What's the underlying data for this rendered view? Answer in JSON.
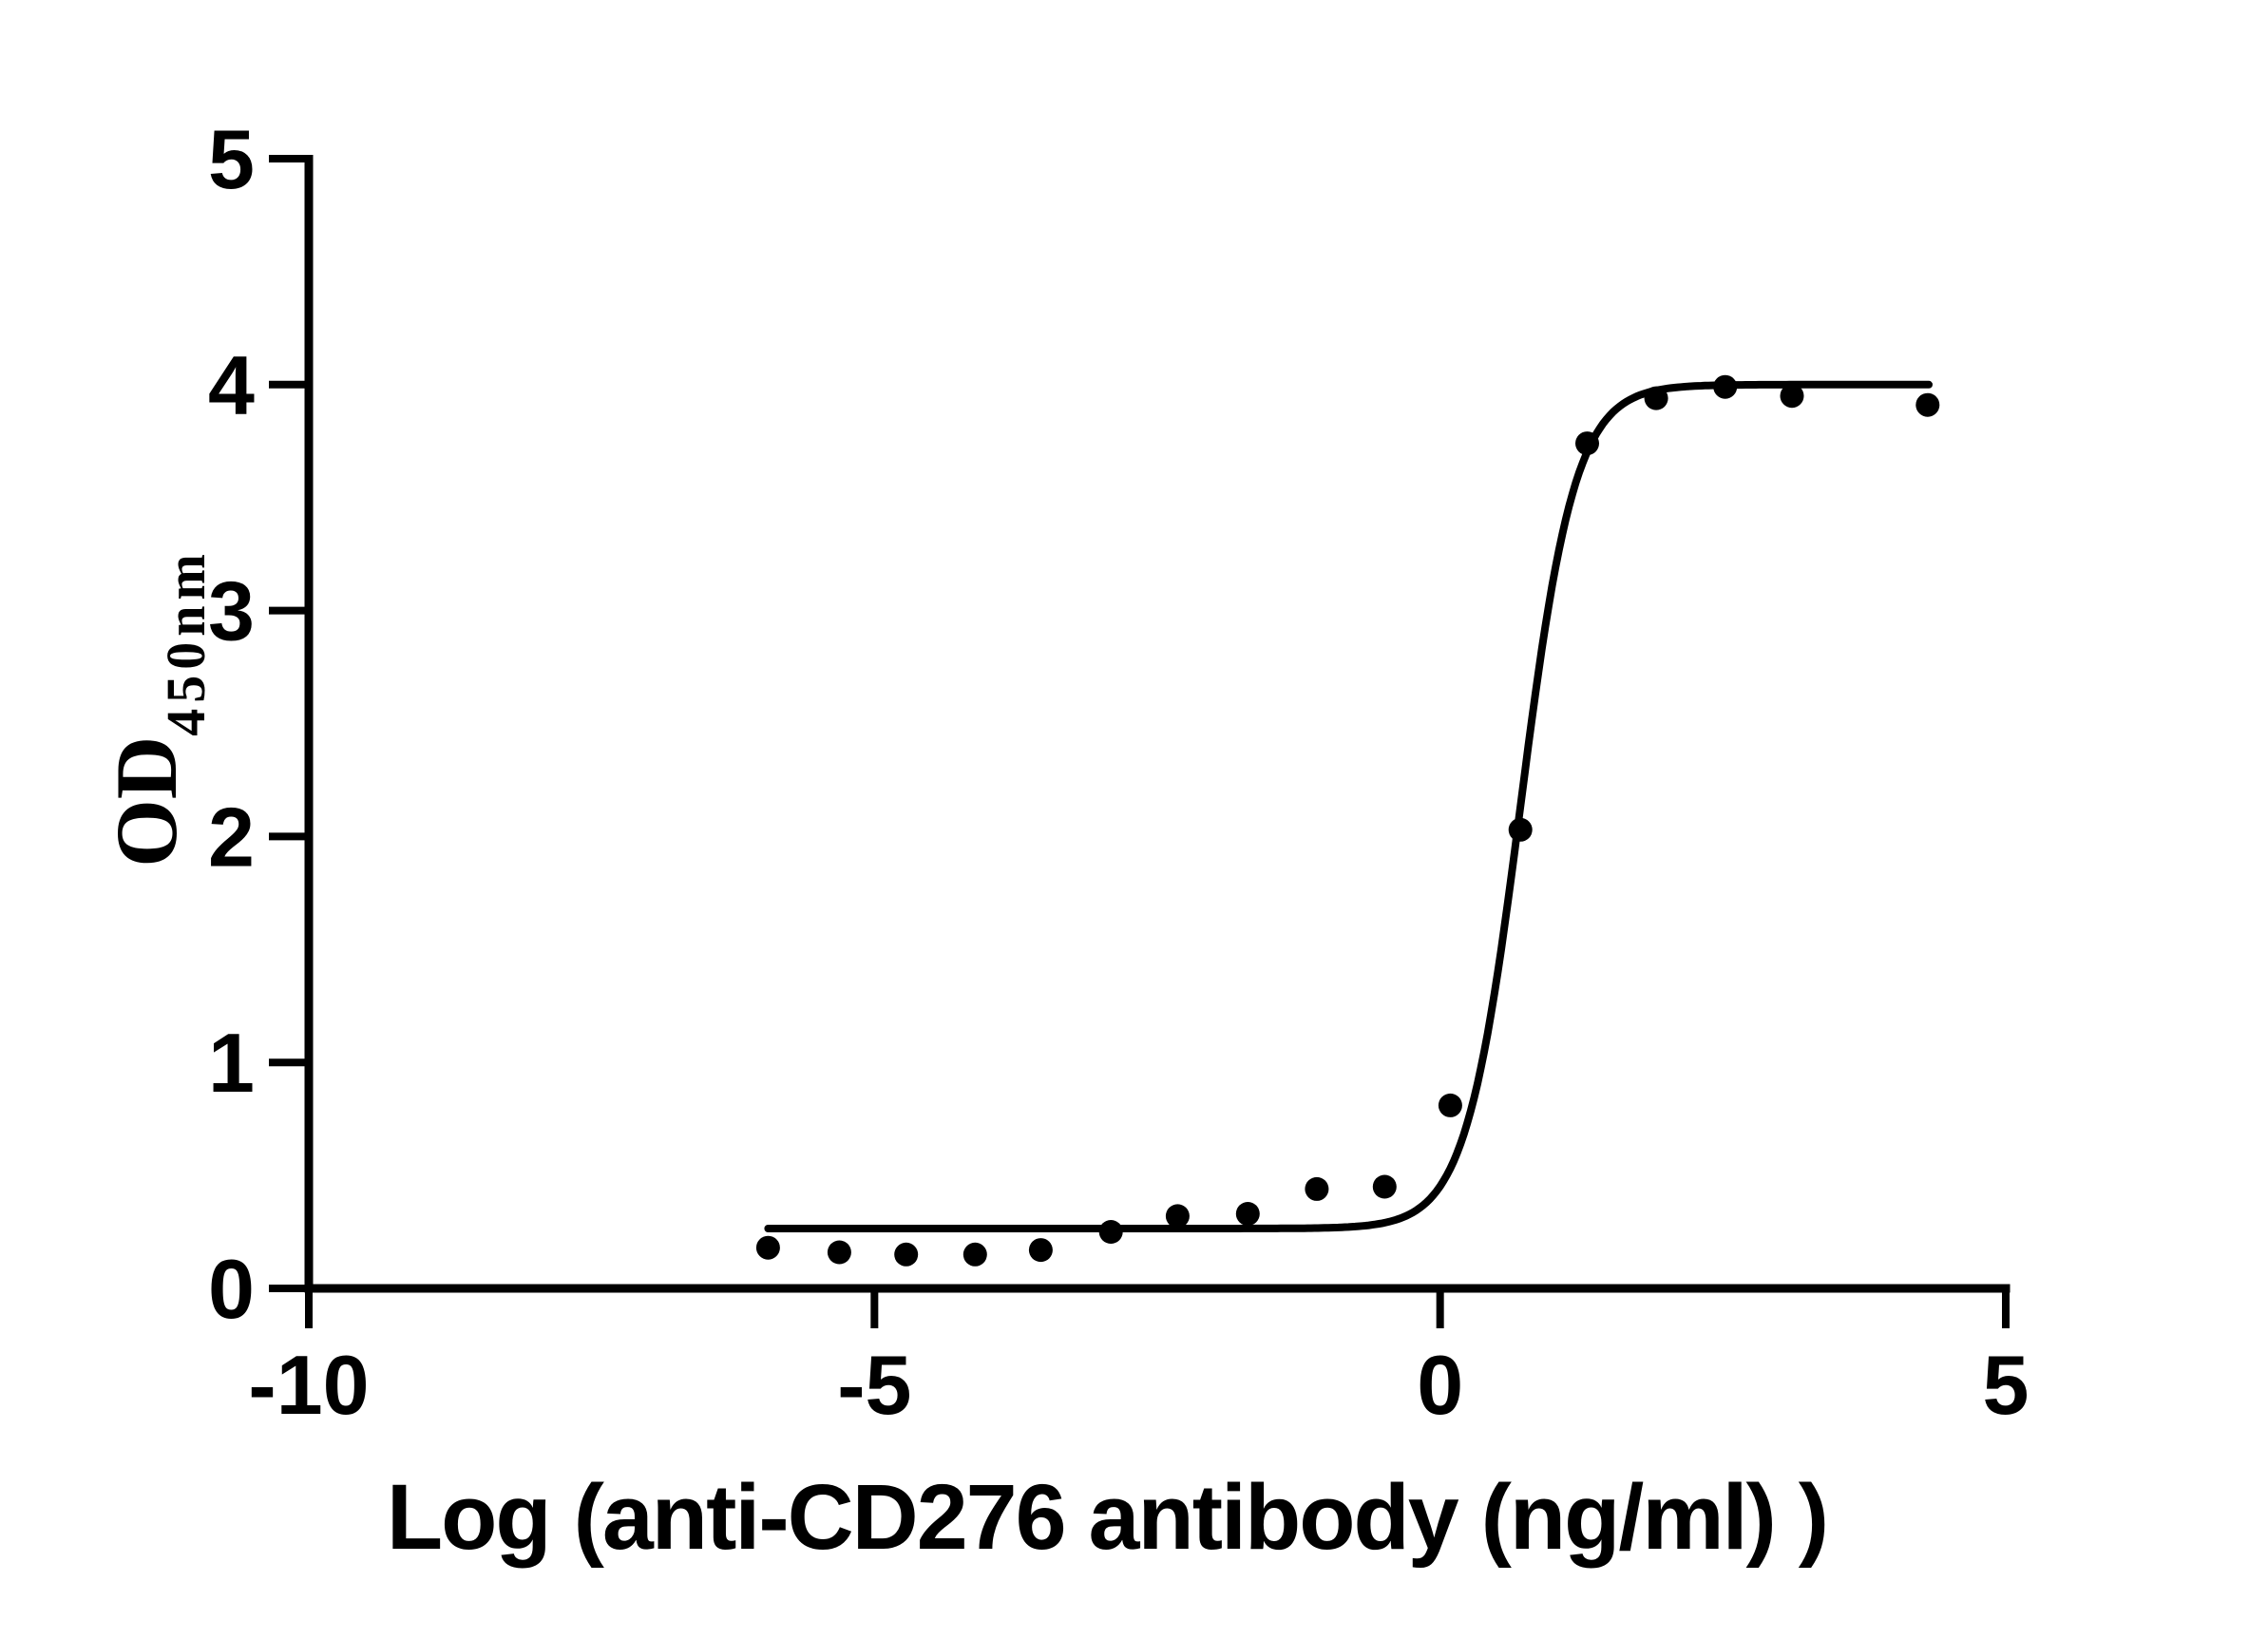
{
  "figure": {
    "colors": {
      "foreground": "#000000",
      "background": "#ffffff"
    }
  },
  "chart_data": {
    "type": "scatter",
    "title": "",
    "xlabel": "Log（anti-CD276 antibody（ng/ml） ）",
    "ylabel_base": "OD",
    "ylabel_subscript": "450nm",
    "xlim": [
      -10,
      5
    ],
    "ylim": [
      0,
      5
    ],
    "x_ticks": [
      -10,
      -5,
      0,
      5
    ],
    "y_ticks": [
      0,
      1,
      2,
      3,
      4,
      5
    ],
    "grid": false,
    "legend": null,
    "marker": {
      "shape": "circle",
      "radius_px": 12.5
    },
    "points": [
      {
        "x": -5.94,
        "y": 0.18
      },
      {
        "x": -5.31,
        "y": 0.16
      },
      {
        "x": -4.72,
        "y": 0.15
      },
      {
        "x": -4.11,
        "y": 0.15
      },
      {
        "x": -3.53,
        "y": 0.17
      },
      {
        "x": -2.91,
        "y": 0.25
      },
      {
        "x": -2.32,
        "y": 0.32
      },
      {
        "x": -1.7,
        "y": 0.33
      },
      {
        "x": -1.09,
        "y": 0.44
      },
      {
        "x": -0.49,
        "y": 0.45
      },
      {
        "x": 0.09,
        "y": 0.81
      },
      {
        "x": 0.71,
        "y": 2.03
      },
      {
        "x": 1.3,
        "y": 3.74
      },
      {
        "x": 1.91,
        "y": 3.94
      },
      {
        "x": 2.52,
        "y": 3.99
      },
      {
        "x": 3.11,
        "y": 3.95
      },
      {
        "x": 4.31,
        "y": 3.91
      }
    ],
    "fit_curve": {
      "model": "4PL",
      "bottom": 0.265,
      "top": 4.0,
      "log_ec50": 0.71,
      "hill_slope": 1.8,
      "x_start": -5.94,
      "x_end": 4.33
    }
  }
}
